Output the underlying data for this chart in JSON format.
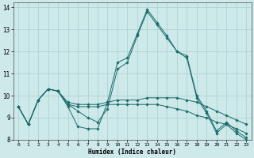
{
  "title": "",
  "xlabel": "Humidex (Indice chaleur)",
  "ylabel": "",
  "bg_color": "#cee9e9",
  "grid_color": "#aacfcf",
  "line_color": "#1a6b6b",
  "xlim": [
    -0.5,
    23.5
  ],
  "ylim": [
    8,
    14.2
  ],
  "yticks": [
    8,
    9,
    10,
    11,
    12,
    13,
    14
  ],
  "xticks": [
    0,
    1,
    2,
    3,
    4,
    5,
    6,
    7,
    8,
    9,
    10,
    11,
    12,
    13,
    14,
    15,
    16,
    17,
    18,
    19,
    20,
    21,
    22,
    23
  ],
  "lines": [
    {
      "x": [
        0,
        1,
        2,
        3,
        4,
        5,
        6,
        7,
        8,
        9,
        10,
        11,
        12,
        13,
        14,
        15,
        16,
        17,
        18,
        19,
        20,
        21,
        22,
        23
      ],
      "y": [
        9.5,
        8.7,
        9.8,
        10.3,
        10.2,
        9.5,
        8.6,
        8.5,
        8.5,
        9.7,
        11.5,
        11.7,
        12.8,
        13.9,
        13.3,
        12.7,
        12.0,
        11.8,
        10.0,
        9.3,
        8.4,
        8.8,
        8.4,
        8.1
      ]
    },
    {
      "x": [
        0,
        1,
        2,
        3,
        4,
        5,
        6,
        7,
        8,
        9,
        10,
        11,
        12,
        13,
        14,
        15,
        16,
        17,
        18,
        19,
        20,
        21,
        22,
        23
      ],
      "y": [
        9.5,
        8.7,
        9.8,
        10.3,
        10.2,
        9.6,
        9.5,
        9.5,
        9.5,
        9.6,
        9.6,
        9.6,
        9.6,
        9.6,
        9.6,
        9.5,
        9.4,
        9.3,
        9.1,
        9.0,
        8.8,
        8.7,
        8.5,
        8.3
      ]
    },
    {
      "x": [
        0,
        1,
        2,
        3,
        4,
        5,
        6,
        7,
        8,
        9,
        10,
        11,
        12,
        13,
        14,
        15,
        16,
        17,
        18,
        19,
        20,
        21,
        22,
        23
      ],
      "y": [
        9.5,
        8.7,
        9.8,
        10.3,
        10.2,
        9.7,
        9.6,
        9.6,
        9.6,
        9.7,
        9.8,
        9.8,
        9.8,
        9.9,
        9.9,
        9.9,
        9.9,
        9.8,
        9.7,
        9.5,
        9.3,
        9.1,
        8.9,
        8.7
      ]
    },
    {
      "x": [
        0,
        1,
        2,
        3,
        4,
        5,
        6,
        7,
        8,
        9,
        10,
        11,
        12,
        13,
        14,
        15,
        16,
        17,
        18,
        19,
        20,
        21,
        22,
        23
      ],
      "y": [
        9.5,
        8.7,
        9.8,
        10.3,
        10.2,
        9.6,
        9.3,
        9.0,
        8.8,
        9.4,
        11.2,
        11.5,
        12.7,
        13.8,
        13.2,
        12.6,
        12.0,
        11.7,
        9.9,
        9.2,
        8.3,
        8.7,
        8.3,
        8.0
      ]
    }
  ]
}
